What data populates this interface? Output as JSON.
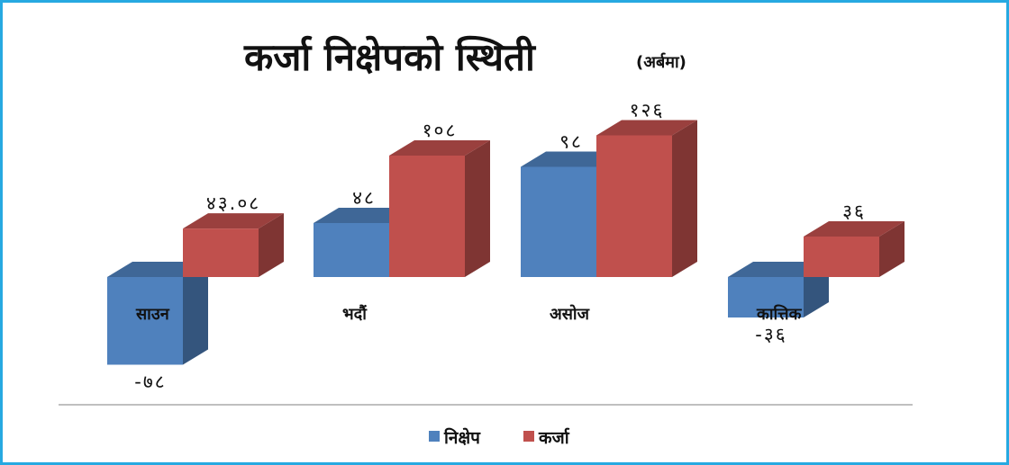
{
  "chart_data": {
    "type": "bar",
    "title": "कर्जा निक्षेपको स्थिती",
    "subtitle": "(अर्बमा)",
    "categories": [
      "साउन",
      "भदौं",
      "असोज",
      "कात्तिक"
    ],
    "series": [
      {
        "name": "निक्षेप",
        "color": "#4f81bd",
        "values": [
          -78,
          48,
          98,
          -36
        ],
        "labels": [
          "-७८",
          "४८",
          "९८",
          "-३६"
        ]
      },
      {
        "name": "कर्जा",
        "color": "#c0504d",
        "values": [
          43.08,
          108,
          126,
          36
        ],
        "labels": [
          "४३.०८",
          "१०८",
          "१२६",
          "३६"
        ]
      }
    ],
    "three_d": true,
    "legend_position": "bottom",
    "grid": false
  },
  "colors": {
    "frame_border": "#27a9e1",
    "axis_line": "#bfbfbf"
  }
}
